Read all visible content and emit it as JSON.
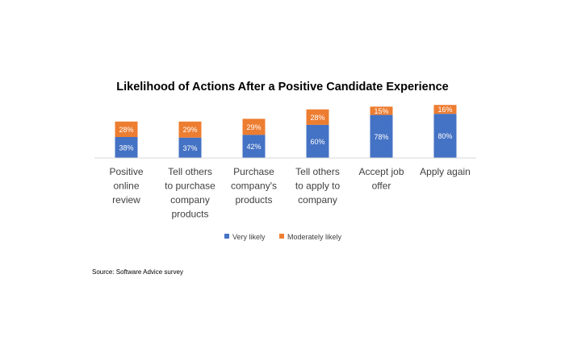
{
  "chart_data": {
    "type": "bar",
    "stacked": true,
    "title": "Likelihood of Actions After a Positive Candidate Experience",
    "categories": [
      [
        "Positive",
        "online",
        "review"
      ],
      [
        "Tell others",
        "to purchase",
        "company",
        "products"
      ],
      [
        "Purchase",
        "company's",
        "products"
      ],
      [
        "Tell others",
        "to apply to",
        "company"
      ],
      [
        "Accept job",
        "offer"
      ],
      [
        "Apply again"
      ]
    ],
    "series": [
      {
        "name": "Very likely",
        "color": "#4472C4",
        "values": [
          38,
          37,
          42,
          60,
          78,
          80
        ],
        "labels": [
          "38%",
          "37%",
          "42%",
          "60%",
          "78%",
          "80%"
        ]
      },
      {
        "name": "Moderately likely",
        "color": "#ED7D31",
        "values": [
          28,
          29,
          29,
          28,
          15,
          16
        ],
        "labels": [
          "28%",
          "29%",
          "29%",
          "28%",
          "15%",
          "16%"
        ]
      }
    ],
    "legend_position": "bottom",
    "ylim": [
      0,
      100
    ],
    "grid": false
  },
  "source": "Source: Software Advice survey"
}
